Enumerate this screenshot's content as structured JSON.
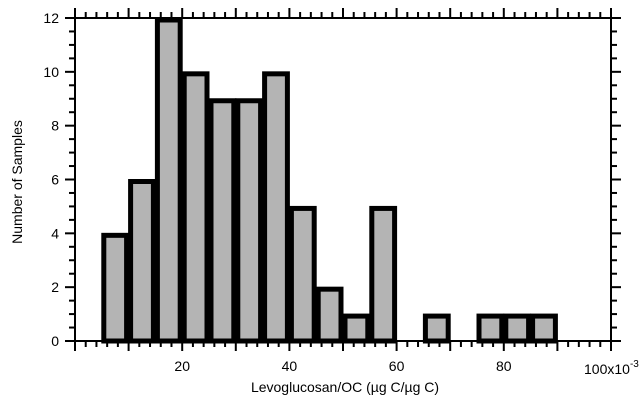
{
  "chart_data": {
    "type": "bar",
    "title": "",
    "xlabel": "Levoglucosan/OC (µg C/µg C)",
    "ylabel": "Number of Samples",
    "x_scale_note": {
      "base": "100x10",
      "exponent": "-3"
    },
    "xlim": [
      0,
      100
    ],
    "ylim": [
      0,
      12
    ],
    "x_ticks": [
      20,
      40,
      60,
      80
    ],
    "y_ticks": [
      0,
      2,
      4,
      6,
      8,
      10,
      12
    ],
    "bin_width": 5,
    "grid": false,
    "bars": [
      {
        "x0": 5,
        "x1": 10,
        "count": 4
      },
      {
        "x0": 10,
        "x1": 15,
        "count": 6
      },
      {
        "x0": 15,
        "x1": 20,
        "count": 12
      },
      {
        "x0": 20,
        "x1": 25,
        "count": 10
      },
      {
        "x0": 25,
        "x1": 30,
        "count": 9
      },
      {
        "x0": 30,
        "x1": 35,
        "count": 9
      },
      {
        "x0": 35,
        "x1": 40,
        "count": 10
      },
      {
        "x0": 40,
        "x1": 45,
        "count": 5
      },
      {
        "x0": 45,
        "x1": 50,
        "count": 2
      },
      {
        "x0": 50,
        "x1": 55,
        "count": 1
      },
      {
        "x0": 55,
        "x1": 60,
        "count": 5
      },
      {
        "x0": 65,
        "x1": 70,
        "count": 1
      },
      {
        "x0": 75,
        "x1": 80,
        "count": 1
      },
      {
        "x0": 80,
        "x1": 85,
        "count": 1
      },
      {
        "x0": 85,
        "x1": 90,
        "count": 1
      }
    ],
    "colors": {
      "bar_fill": "#b4b4b4",
      "bar_stroke": "#000000"
    }
  }
}
